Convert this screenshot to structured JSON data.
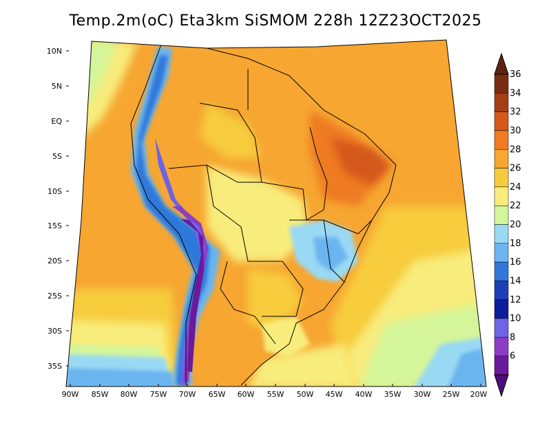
{
  "title": "Temp.2m(oC) Eta3km SiSMOM 228h 12Z23OCT2025",
  "map": {
    "lat_labels": [
      "10N",
      "5N",
      "EQ",
      "5S",
      "10S",
      "15S",
      "20S",
      "25S",
      "30S",
      "35S"
    ],
    "lon_labels": [
      "90W",
      "85W",
      "80W",
      "75W",
      "70W",
      "65W",
      "60W",
      "55W",
      "50W",
      "45W",
      "40W",
      "35W",
      "30W",
      "25W",
      "20W"
    ]
  },
  "colorbar": {
    "labels": [
      "36",
      "34",
      "32",
      "30",
      "28",
      "26",
      "24",
      "22",
      "20",
      "18",
      "16",
      "14",
      "12",
      "10",
      "8",
      "6"
    ],
    "colors": [
      "#7a2c12",
      "#a63d14",
      "#d4591a",
      "#ee7a22",
      "#f6a631",
      "#f7cc3c",
      "#f8ec7c",
      "#d4f59a",
      "#9ad9f4",
      "#6bb5f0",
      "#2f78d9",
      "#1c3fb5",
      "#0b1d99",
      "#6d63e6",
      "#8b3dc7",
      "#6a1a9a"
    ],
    "top_color": "#5e2310",
    "bottom_color": "#4b0f7a"
  },
  "chart_data": {
    "type": "heatmap",
    "title": "Temp.2m(oC) Eta3km SiSMOM 228h 12Z23OCT2025",
    "x_range": [
      -90,
      -20
    ],
    "y_range": [
      -38,
      12
    ],
    "color_levels": [
      6,
      8,
      10,
      12,
      14,
      16,
      18,
      20,
      22,
      24,
      26,
      28,
      30,
      32,
      34,
      36
    ]
  }
}
